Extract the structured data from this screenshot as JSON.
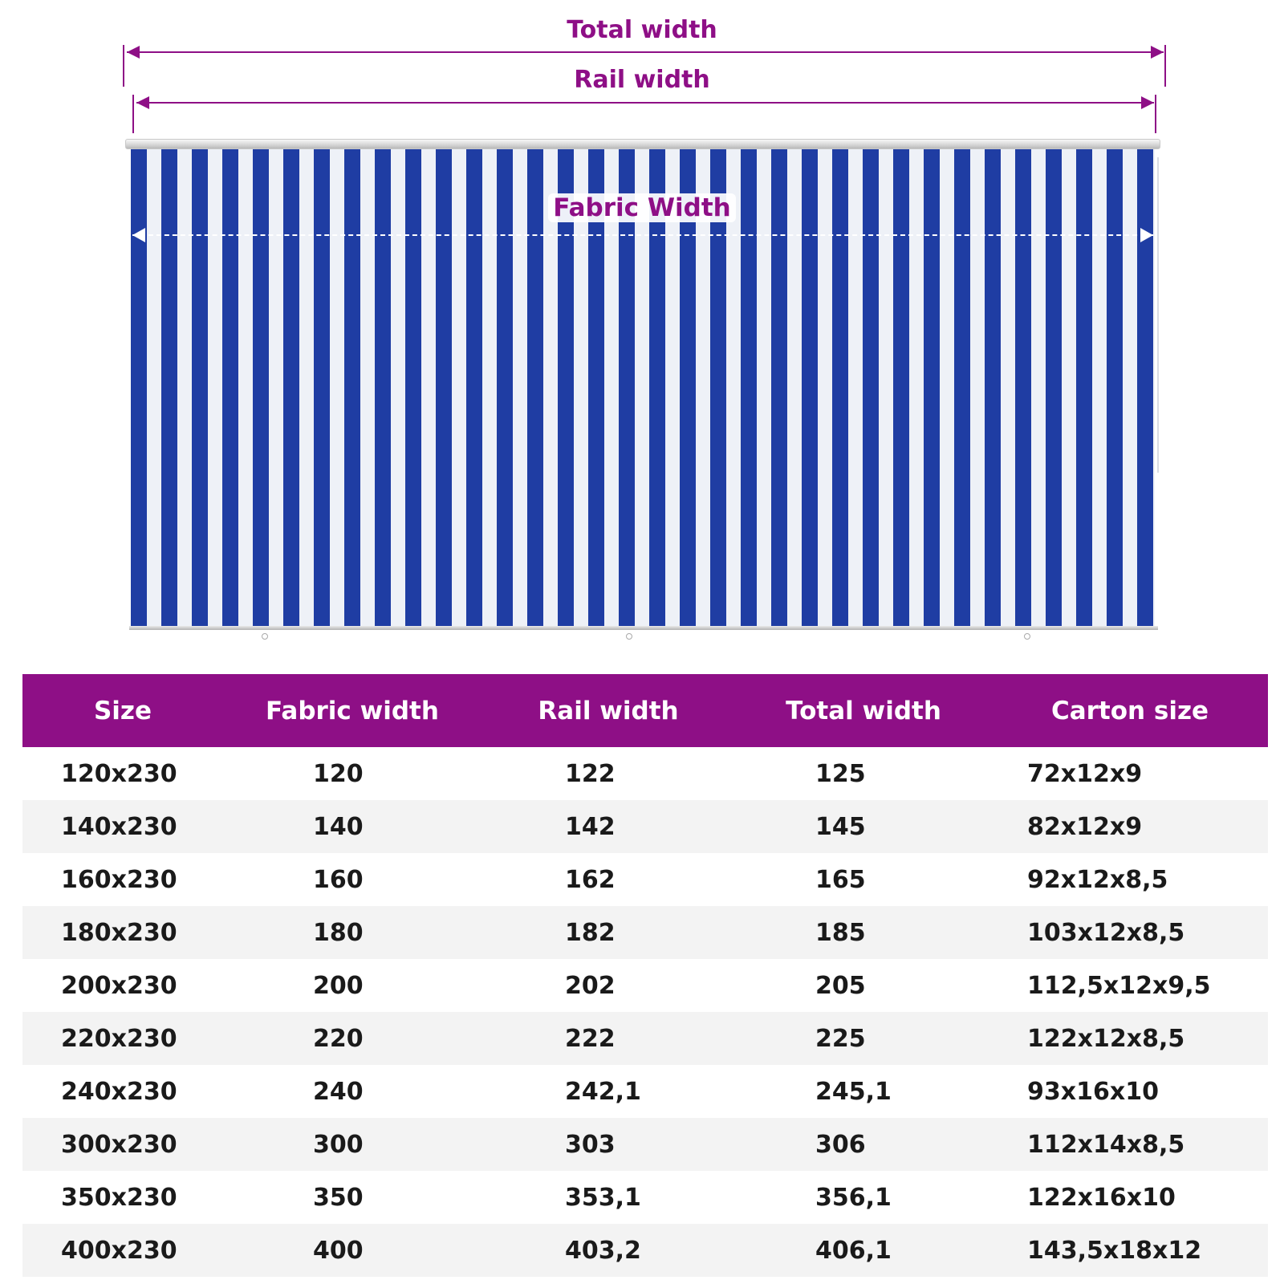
{
  "diagram": {
    "total_width_label": "Total width",
    "rail_width_label": "Rail width",
    "fabric_width_label": "Fabric Width",
    "colors": {
      "accent": "#8e0f86",
      "stripe_blue": "#1f3da3",
      "stripe_white": "#eef1f7"
    }
  },
  "table": {
    "headers": [
      "Size",
      "Fabric width",
      "Rail width",
      "Total width",
      "Carton size"
    ],
    "rows": [
      [
        "120x230",
        "120",
        "122",
        "125",
        "72x12x9"
      ],
      [
        "140x230",
        "140",
        "142",
        "145",
        "82x12x9"
      ],
      [
        "160x230",
        "160",
        "162",
        "165",
        "92x12x8,5"
      ],
      [
        "180x230",
        "180",
        "182",
        "185",
        "103x12x8,5"
      ],
      [
        "200x230",
        "200",
        "202",
        "205",
        "112,5x12x9,5"
      ],
      [
        "220x230",
        "220",
        "222",
        "225",
        "122x12x8,5"
      ],
      [
        "240x230",
        "240",
        "242,1",
        "245,1",
        "93x16x10"
      ],
      [
        "300x230",
        "300",
        "303",
        "306",
        "112x14x8,5"
      ],
      [
        "350x230",
        "350",
        "353,1",
        "356,1",
        "122x16x10"
      ],
      [
        "400x230",
        "400",
        "403,2",
        "406,1",
        "143,5x18x12"
      ]
    ]
  }
}
